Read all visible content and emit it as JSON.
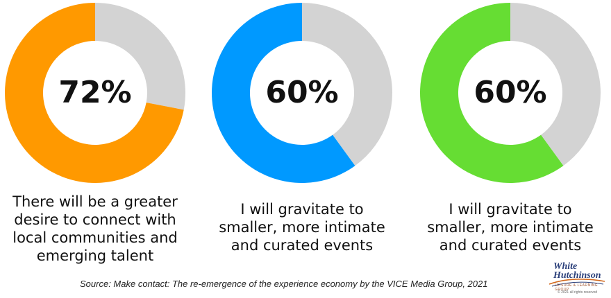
{
  "chart_data": [
    {
      "type": "pie",
      "variant": "donut",
      "value": 72,
      "label": "72%",
      "caption": [
        "There will be a greater",
        "desire to connect with",
        "local communities and",
        "emerging talent"
      ],
      "color": "#FF9900",
      "remainder_color": "#D3D3D3"
    },
    {
      "type": "pie",
      "variant": "donut",
      "value": 60,
      "label": "60%",
      "caption": [
        "I will gravitate to",
        "smaller, more intimate",
        "and curated events"
      ],
      "color": "#0099FF",
      "remainder_color": "#D3D3D3"
    },
    {
      "type": "pie",
      "variant": "donut",
      "value": 60,
      "label": "60%",
      "caption": [
        "I will gravitate to",
        "smaller, more intimate",
        "and curated events"
      ],
      "color": "#66DD33",
      "remainder_color": "#D3D3D3"
    }
  ],
  "source": "Source: Make contact: The re-emergence of the experience economy by the VICE Media Group, 2021",
  "logo": {
    "line1": "White",
    "line2": "Hutchinson",
    "tagline": "LEISURE & LEARNING GROUP",
    "copyright": "© 2021 all rights reserved"
  }
}
